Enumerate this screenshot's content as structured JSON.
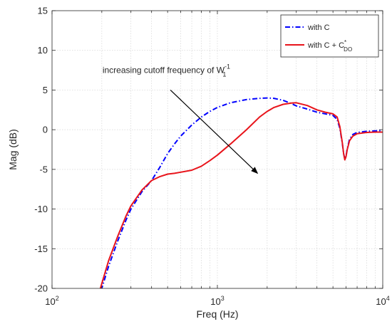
{
  "chart_data": {
    "type": "line",
    "title": "",
    "xlabel": "Freq (Hz)",
    "ylabel": "Mag (dB)",
    "xscale": "log",
    "xlim": [
      100,
      10000
    ],
    "ylim": [
      -20,
      15
    ],
    "xticks": [
      {
        "value": 100,
        "base": "10",
        "exp": "2"
      },
      {
        "value": 1000,
        "base": "10",
        "exp": "3"
      },
      {
        "value": 10000,
        "base": "10",
        "exp": "4"
      }
    ],
    "yticks": [
      -20,
      -15,
      -10,
      -5,
      0,
      5,
      10,
      15
    ],
    "grid": {
      "x_major": true,
      "x_minor": true,
      "y_major": true
    },
    "legend": {
      "position": "top-right"
    },
    "series": [
      {
        "name": "with C",
        "label_main": "with C",
        "color": "#0000ff",
        "style": "dash-dot",
        "x": [
          190,
          200,
          220,
          250,
          280,
          300,
          350,
          400,
          450,
          500,
          550,
          600,
          700,
          800,
          900,
          1000,
          1200,
          1500,
          1800,
          2000,
          2200,
          2500,
          2800,
          3000,
          3500,
          4000,
          4500,
          5000,
          5300,
          5500,
          5700,
          5800,
          5900,
          6000,
          6100,
          6300,
          6600,
          7000,
          8000,
          9000,
          10000
        ],
        "y": [
          -21.5,
          -20.0,
          -17.2,
          -14.0,
          -11.4,
          -10.0,
          -7.8,
          -6.4,
          -4.7,
          -3.0,
          -1.8,
          -0.8,
          0.6,
          1.6,
          2.3,
          2.8,
          3.4,
          3.8,
          3.95,
          4.0,
          3.95,
          3.7,
          3.3,
          3.0,
          2.6,
          2.2,
          2.0,
          1.8,
          1.3,
          0.2,
          -1.8,
          -3.0,
          -3.7,
          -3.3,
          -2.4,
          -1.2,
          -0.6,
          -0.35,
          -0.2,
          -0.15,
          -0.1
        ]
      },
      {
        "name": "with C + C_DO^*",
        "label_main": "with C + C",
        "label_sub": "DO",
        "label_sup": "*",
        "color": "#e8141b",
        "style": "solid",
        "x": [
          190,
          200,
          220,
          250,
          280,
          300,
          350,
          400,
          450,
          500,
          550,
          600,
          700,
          800,
          900,
          1000,
          1200,
          1500,
          1800,
          2000,
          2200,
          2500,
          2800,
          3000,
          3500,
          4000,
          4500,
          5000,
          5300,
          5500,
          5700,
          5800,
          5900,
          6000,
          6100,
          6300,
          6600,
          7000,
          8000,
          9000,
          10000
        ],
        "y": [
          -21.0,
          -19.4,
          -16.5,
          -13.4,
          -10.9,
          -9.6,
          -7.6,
          -6.4,
          -5.9,
          -5.6,
          -5.5,
          -5.35,
          -5.1,
          -4.6,
          -3.9,
          -3.2,
          -1.8,
          0.0,
          1.6,
          2.3,
          2.8,
          3.2,
          3.35,
          3.4,
          3.05,
          2.5,
          2.2,
          2.0,
          1.6,
          0.4,
          -1.7,
          -3.0,
          -3.8,
          -3.4,
          -2.5,
          -1.4,
          -0.8,
          -0.5,
          -0.35,
          -0.3,
          -0.3
        ]
      }
    ],
    "annotations": [
      {
        "kind": "text",
        "text_main": "increasing cutoff frequency of W",
        "sub": "1",
        "sup": "-1",
        "x": 490,
        "y": 7.5
      },
      {
        "kind": "arrow",
        "from": {
          "x": 520,
          "y": 5.0
        },
        "to": {
          "x": 1750,
          "y": -5.5
        }
      }
    ]
  }
}
